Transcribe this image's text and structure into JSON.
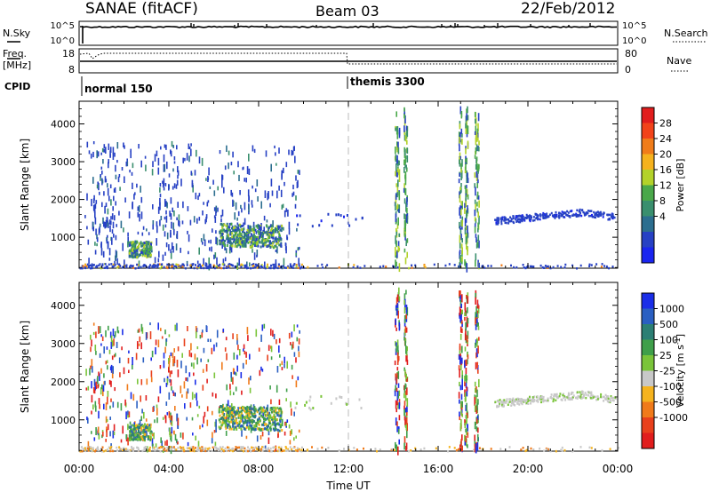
{
  "header": {
    "station": "SANAE (fitACF)",
    "beam": "Beam 03",
    "date": "22/Feb/2012"
  },
  "strips": {
    "nsky_label": "N.Sky",
    "nsky_ticks": [
      "10^5",
      "10^0"
    ],
    "nsearch_label": "N.Search",
    "nsearch_ticks": [
      "10^5",
      "10^0"
    ],
    "freq_label": "Freq.",
    "freq_unit": "[MHz]",
    "freq_ticks": [
      "18",
      "8"
    ],
    "nave_label": "Nave",
    "nave_ticks": [
      "80",
      "0"
    ],
    "cpid_label": "CPID",
    "cpid_modes": [
      {
        "name": "normal 150",
        "start_hour": 0
      },
      {
        "name": "themis 3300",
        "start_hour": 12
      }
    ]
  },
  "chart_data": [
    {
      "type": "heatmap",
      "name": "power-panel",
      "ylabel": "Slant Range [km]",
      "xlabel": "Time UT",
      "xlim_hours": [
        0,
        24
      ],
      "ylim_km": [
        180,
        4600
      ],
      "yticks": [
        1000,
        2000,
        3000,
        4000
      ],
      "xticks": [
        "00:00",
        "04:00",
        "08:00",
        "12:00",
        "16:00",
        "20:00",
        "00:00"
      ],
      "colorbar": {
        "label": "Power [dB]",
        "ticks": [
          "28",
          "24",
          "20",
          "16",
          "12",
          "8",
          "4"
        ],
        "colors": [
          "#e11d1d",
          "#f2431a",
          "#f07c1a",
          "#f5b21e",
          "#b3d22a",
          "#4aa84a",
          "#3a8f6e",
          "#2c6e8f",
          "#2741c4",
          "#1a25f0"
        ]
      },
      "regions": [
        {
          "t0": 0.2,
          "t1": 9.8,
          "r0": 180,
          "r1": 3550,
          "density": "sparse",
          "dominant": "blue 4-8 dB"
        },
        {
          "t0": 2.2,
          "t1": 3.2,
          "r0": 500,
          "r1": 900,
          "density": "dense",
          "dominant": "green/blue 8-14 dB"
        },
        {
          "t0": 6.2,
          "t1": 9.0,
          "r0": 800,
          "r1": 1400,
          "density": "dense",
          "dominant": "green 10-16 dB"
        },
        {
          "t0": 0.0,
          "t1": 24.0,
          "r0": 180,
          "r1": 320,
          "density": "dense",
          "dominant": "blue 4-8 dB, some 16-24 dB near 04:00-08:00"
        },
        {
          "t0": 14.0,
          "t1": 14.6,
          "r0": 300,
          "r1": 4500,
          "density": "columns",
          "dominant": "blue/green"
        },
        {
          "t0": 16.8,
          "t1": 17.8,
          "r0": 300,
          "r1": 4500,
          "density": "columns",
          "dominant": "green/blue"
        },
        {
          "t0": 18.5,
          "t1": 24.0,
          "r0": 1300,
          "r1": 1900,
          "density": "band",
          "dominant": "blue 4-8 dB"
        }
      ],
      "markers": {
        "mode_change_hour": 12
      }
    },
    {
      "type": "heatmap",
      "name": "velocity-panel",
      "ylabel": "Slant Range [km]",
      "xlabel": "Time UT",
      "xlim_hours": [
        0,
        24
      ],
      "ylim_km": [
        180,
        4600
      ],
      "yticks": [
        1000,
        2000,
        3000,
        4000
      ],
      "xticks": [
        "00:00",
        "04:00",
        "08:00",
        "12:00",
        "16:00",
        "20:00",
        "00:00"
      ],
      "colorbar": {
        "label": "Velocity [m s",
        "label_sup": "-1",
        "label_end": "]",
        "ticks": [
          "1000",
          "500",
          "100",
          "25",
          "-25",
          "-100",
          "-500",
          "-1000"
        ],
        "colors": [
          "#1a2ee8",
          "#2a5fc2",
          "#2c7f74",
          "#3f9f4a",
          "#7ac43a",
          "#c8c8c8",
          "#f5b31e",
          "#f07a1a",
          "#e8401c",
          "#e11d1d"
        ]
      },
      "regions": [
        {
          "t0": 0.2,
          "t1": 9.8,
          "r0": 180,
          "r1": 3550,
          "density": "sparse",
          "dominant": "mixed red/orange/blue"
        },
        {
          "t0": 2.2,
          "t1": 3.2,
          "r0": 500,
          "r1": 900,
          "density": "dense",
          "dominant": "green/blue"
        },
        {
          "t0": 6.2,
          "t1": 9.0,
          "r0": 800,
          "r1": 1400,
          "density": "dense",
          "dominant": "green/blue with orange"
        },
        {
          "t0": 0.0,
          "t1": 24.0,
          "r0": 180,
          "r1": 320,
          "density": "dense",
          "dominant": "orange/gray ground scatter"
        },
        {
          "t0": 14.0,
          "t1": 14.6,
          "r0": 300,
          "r1": 4500,
          "density": "columns",
          "dominant": "red/green"
        },
        {
          "t0": 16.8,
          "t1": 17.8,
          "r0": 300,
          "r1": 4500,
          "density": "columns",
          "dominant": "red/orange/green"
        },
        {
          "t0": 18.5,
          "t1": 24.0,
          "r0": 1300,
          "r1": 1900,
          "density": "band",
          "dominant": "gray -25 to 25 m/s"
        }
      ],
      "markers": {
        "mode_change_hour": 12
      }
    }
  ]
}
